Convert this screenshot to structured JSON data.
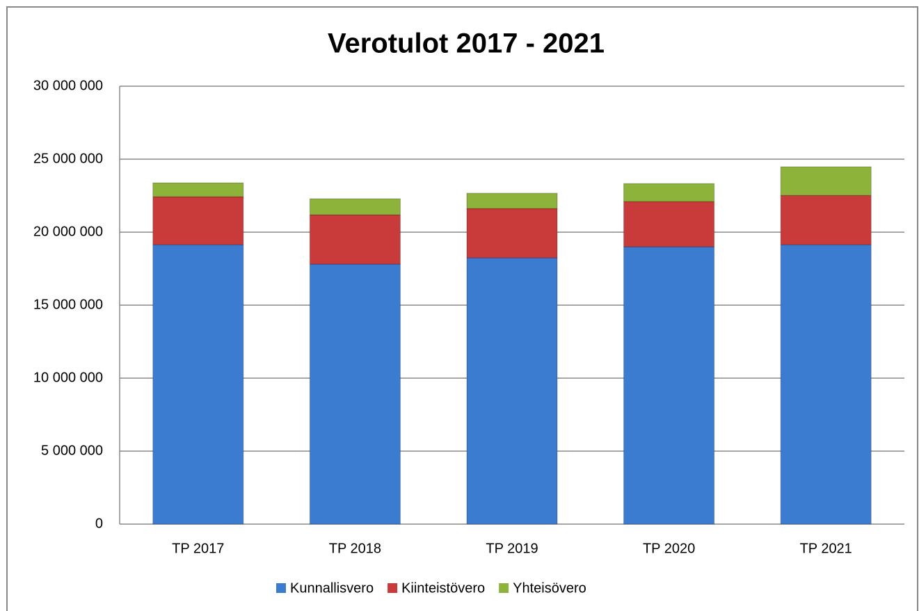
{
  "chart_data": {
    "type": "stacked_bar",
    "title": "Verotulot 2017 - 2021",
    "categories": [
      "TP 2017",
      "TP 2018",
      "TP 2019",
      "TP 2020",
      "TP 2021"
    ],
    "series": [
      {
        "name": "Kunnallisvero",
        "color": "#3b7bd0",
        "values": [
          19140000,
          17810000,
          18240000,
          19000000,
          19140000
        ]
      },
      {
        "name": "Kiinteistövero",
        "color": "#c93b3b",
        "values": [
          3290000,
          3380000,
          3380000,
          3100000,
          3380000
        ]
      },
      {
        "name": "Yhteisövero",
        "color": "#8db33a",
        "values": [
          950000,
          1100000,
          1050000,
          1230000,
          1960000
        ]
      }
    ],
    "ylim": [
      0,
      30000000
    ],
    "yticks": [
      0,
      {
        "value": 5000000,
        "label": "5 000 000"
      },
      {
        "value": 10000000,
        "label": "10 000 000"
      },
      {
        "value": 15000000,
        "label": "15 000 000"
      },
      {
        "value": 20000000,
        "label": "20 000 000"
      },
      {
        "value": 25000000,
        "label": "25 000 000"
      },
      {
        "value": 30000000,
        "label": "30 000 000"
      }
    ],
    "grid": true,
    "legend": "bottom"
  }
}
